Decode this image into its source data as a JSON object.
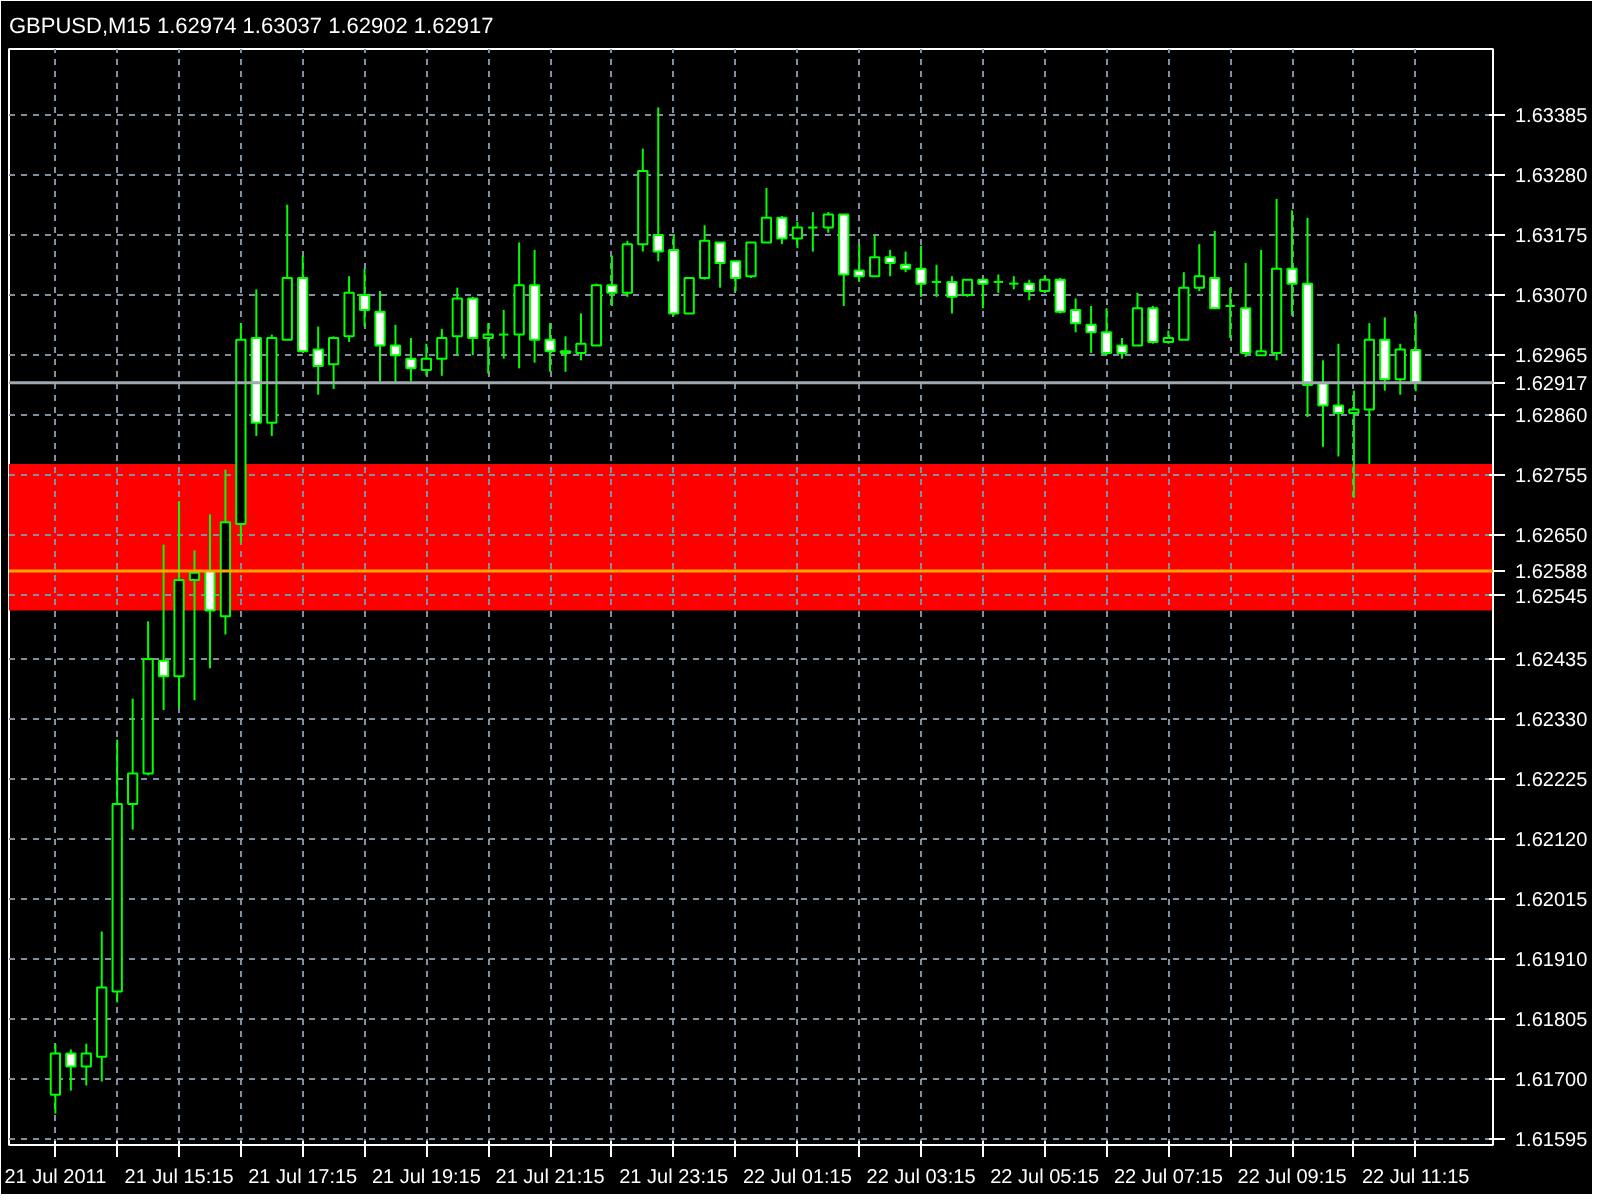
{
  "chart_data": {
    "type": "candlestick",
    "title": "GBPUSD,M15 1.62974 1.63037 1.62902 1.62917",
    "color": "#00ff00",
    "x": [
      "2011-07-21T13:15",
      "2011-07-21T13:30",
      "2011-07-21T13:45",
      "2011-07-21T14:00",
      "2011-07-21T14:15",
      "2011-07-21T14:30",
      "2011-07-21T14:45",
      "2011-07-21T15:00",
      "2011-07-21T15:15",
      "2011-07-21T15:30",
      "2011-07-21T15:45",
      "2011-07-21T16:00",
      "2011-07-21T16:15",
      "2011-07-21T16:30",
      "2011-07-21T16:45",
      "2011-07-21T17:00",
      "2011-07-21T17:15",
      "2011-07-21T17:30",
      "2011-07-21T17:45",
      "2011-07-21T18:00",
      "2011-07-21T18:15",
      "2011-07-21T18:30",
      "2011-07-21T18:45",
      "2011-07-21T19:00",
      "2011-07-21T19:15",
      "2011-07-21T19:30",
      "2011-07-21T19:45",
      "2011-07-21T20:00",
      "2011-07-21T20:15",
      "2011-07-21T20:30",
      "2011-07-21T20:45",
      "2011-07-21T21:00",
      "2011-07-21T21:15",
      "2011-07-21T21:30",
      "2011-07-21T21:45",
      "2011-07-21T22:00",
      "2011-07-21T22:15",
      "2011-07-21T22:30",
      "2011-07-21T22:45",
      "2011-07-21T23:00",
      "2011-07-21T23:15",
      "2011-07-21T23:30",
      "2011-07-21T23:45",
      "2011-07-22T00:00",
      "2011-07-22T00:15",
      "2011-07-22T00:30",
      "2011-07-22T00:45",
      "2011-07-22T01:00",
      "2011-07-22T01:15",
      "2011-07-22T01:30",
      "2011-07-22T01:45",
      "2011-07-22T02:00",
      "2011-07-22T02:15",
      "2011-07-22T02:30",
      "2011-07-22T02:45",
      "2011-07-22T03:00",
      "2011-07-22T03:15",
      "2011-07-22T03:30",
      "2011-07-22T03:45",
      "2011-07-22T04:00",
      "2011-07-22T04:15",
      "2011-07-22T04:30",
      "2011-07-22T04:45",
      "2011-07-22T05:00",
      "2011-07-22T05:15",
      "2011-07-22T05:30",
      "2011-07-22T05:45",
      "2011-07-22T06:00",
      "2011-07-22T06:15",
      "2011-07-22T06:30",
      "2011-07-22T06:45",
      "2011-07-22T07:00",
      "2011-07-22T07:15",
      "2011-07-22T07:30",
      "2011-07-22T07:45",
      "2011-07-22T08:00",
      "2011-07-22T08:15",
      "2011-07-22T08:30",
      "2011-07-22T08:45",
      "2011-07-22T09:00",
      "2011-07-22T09:15",
      "2011-07-22T09:30",
      "2011-07-22T09:45",
      "2011-07-22T10:00",
      "2011-07-22T10:15",
      "2011-07-22T10:30",
      "2011-07-22T10:45",
      "2011-07-22T11:00",
      "2011-07-22T11:15"
    ],
    "ohlc": [
      [
        1.61673,
        1.61762,
        1.6164,
        1.61745
      ],
      [
        1.61745,
        1.61752,
        1.6168,
        1.61722
      ],
      [
        1.61722,
        1.61762,
        1.61689,
        1.61745
      ],
      [
        1.61739,
        1.61958,
        1.61696,
        1.6186
      ],
      [
        1.61853,
        1.62293,
        1.61834,
        1.62181
      ],
      [
        1.62181,
        1.62365,
        1.62136,
        1.62234
      ],
      [
        1.62234,
        1.625,
        1.62231,
        1.62434
      ],
      [
        1.62431,
        1.62634,
        1.62345,
        1.62404
      ],
      [
        1.62404,
        1.6271,
        1.62349,
        1.62572
      ],
      [
        1.62572,
        1.62624,
        1.62362,
        1.62585
      ],
      [
        1.62588,
        1.62687,
        1.62418,
        1.62519
      ],
      [
        1.62509,
        1.62765,
        1.62477,
        1.62673
      ],
      [
        1.6267,
        1.63021,
        1.62637,
        1.62992
      ],
      [
        1.62995,
        1.6308,
        1.62824,
        1.62847
      ],
      [
        1.62847,
        1.63001,
        1.62824,
        1.62995
      ],
      [
        1.62992,
        1.63228,
        1.62992,
        1.631
      ],
      [
        1.631,
        1.63139,
        1.62972,
        1.62972
      ],
      [
        1.62975,
        1.63015,
        1.62896,
        1.62946
      ],
      [
        1.62949,
        1.62998,
        1.62906,
        1.62995
      ],
      [
        1.62998,
        1.63103,
        1.62988,
        1.63074
      ],
      [
        1.6307,
        1.63116,
        1.63015,
        1.63044
      ],
      [
        1.63041,
        1.63077,
        1.62919,
        1.62982
      ],
      [
        1.62982,
        1.63018,
        1.62916,
        1.62965
      ],
      [
        1.62959,
        1.62995,
        1.62919,
        1.62942
      ],
      [
        1.62939,
        1.62985,
        1.62929,
        1.62959
      ],
      [
        1.62959,
        1.63011,
        1.62929,
        1.62995
      ],
      [
        1.62998,
        1.63083,
        1.62965,
        1.63064
      ],
      [
        1.63064,
        1.63067,
        1.62965,
        1.62995
      ],
      [
        1.62995,
        1.63021,
        1.62933,
        1.63001
      ],
      [
        1.63001,
        1.63044,
        1.62959,
        1.63001
      ],
      [
        1.63001,
        1.63162,
        1.62942,
        1.63087
      ],
      [
        1.63087,
        1.63149,
        1.62952,
        1.62992
      ],
      [
        1.62992,
        1.63021,
        1.62936,
        1.62972
      ],
      [
        1.62969,
        1.62998,
        1.62936,
        1.62972
      ],
      [
        1.62969,
        1.63038,
        1.62956,
        1.62985
      ],
      [
        1.62982,
        1.6309,
        1.62982,
        1.63087
      ],
      [
        1.63087,
        1.63139,
        1.63051,
        1.63074
      ],
      [
        1.63074,
        1.63165,
        1.63067,
        1.63159
      ],
      [
        1.63159,
        1.63326,
        1.63146,
        1.63287
      ],
      [
        1.63175,
        1.63398,
        1.63129,
        1.63146
      ],
      [
        1.63149,
        1.63175,
        1.63034,
        1.63038
      ],
      [
        1.63038,
        1.631,
        1.63038,
        1.631
      ],
      [
        1.631,
        1.63192,
        1.63097,
        1.63165
      ],
      [
        1.63162,
        1.63162,
        1.63083,
        1.63126
      ],
      [
        1.63129,
        1.63129,
        1.63077,
        1.631
      ],
      [
        1.63103,
        1.63162,
        1.631,
        1.63162
      ],
      [
        1.63162,
        1.63257,
        1.63162,
        1.63205
      ],
      [
        1.63205,
        1.63208,
        1.63159,
        1.63169
      ],
      [
        1.63169,
        1.63198,
        1.63152,
        1.63188
      ],
      [
        1.63188,
        1.63215,
        1.63146,
        1.63188
      ],
      [
        1.63188,
        1.63215,
        1.63179,
        1.63211
      ],
      [
        1.63211,
        1.63211,
        1.63051,
        1.63106
      ],
      [
        1.63113,
        1.63159,
        1.63093,
        1.63103
      ],
      [
        1.63103,
        1.63175,
        1.63103,
        1.63136
      ],
      [
        1.63136,
        1.63149,
        1.63103,
        1.63126
      ],
      [
        1.63123,
        1.63146,
        1.6311,
        1.63116
      ],
      [
        1.63116,
        1.63156,
        1.63067,
        1.6309
      ],
      [
        1.63093,
        1.63123,
        1.63067,
        1.63093
      ],
      [
        1.63093,
        1.63103,
        1.63038,
        1.63067
      ],
      [
        1.6307,
        1.63097,
        1.63067,
        1.63097
      ],
      [
        1.63097,
        1.63097,
        1.63047,
        1.6309
      ],
      [
        1.63093,
        1.63106,
        1.63074,
        1.63093
      ],
      [
        1.6309,
        1.63103,
        1.6308,
        1.6309
      ],
      [
        1.6309,
        1.63097,
        1.63061,
        1.63077
      ],
      [
        1.63077,
        1.63103,
        1.63074,
        1.63097
      ],
      [
        1.63097,
        1.631,
        1.63038,
        1.63041
      ],
      [
        1.63044,
        1.63064,
        1.63005,
        1.63021
      ],
      [
        1.63018,
        1.63051,
        1.62969,
        1.63005
      ],
      [
        1.63005,
        1.63047,
        1.62965,
        1.62969
      ],
      [
        1.62982,
        1.62995,
        1.62959,
        1.62969
      ],
      [
        1.62982,
        1.63074,
        1.62982,
        1.63047
      ],
      [
        1.63047,
        1.63051,
        1.62985,
        1.62988
      ],
      [
        1.62988,
        1.63008,
        1.62985,
        1.62995
      ],
      [
        1.62992,
        1.6311,
        1.62992,
        1.63083
      ],
      [
        1.63083,
        1.63159,
        1.63077,
        1.63103
      ],
      [
        1.631,
        1.63182,
        1.63047,
        1.63047
      ],
      [
        1.63051,
        1.63083,
        1.62995,
        1.63051
      ],
      [
        1.63047,
        1.63126,
        1.62962,
        1.62969
      ],
      [
        1.62965,
        1.63149,
        1.62965,
        1.62972
      ],
      [
        1.62969,
        1.63238,
        1.62956,
        1.63116
      ],
      [
        1.63116,
        1.63218,
        1.63034,
        1.6309
      ],
      [
        1.6309,
        1.63205,
        1.62857,
        1.62913
      ],
      [
        1.62916,
        1.62956,
        1.62805,
        1.62877
      ],
      [
        1.62877,
        1.62985,
        1.62788,
        1.62864
      ],
      [
        1.62864,
        1.62903,
        1.62716,
        1.6287
      ],
      [
        1.6287,
        1.63021,
        1.62775,
        1.62992
      ],
      [
        1.62992,
        1.63031,
        1.62903,
        1.62923
      ],
      [
        1.62923,
        1.62985,
        1.62896,
        1.62975
      ],
      [
        1.62974,
        1.63037,
        1.62902,
        1.62917
      ]
    ],
    "xlim": [
      "2011-07-21T12:30",
      "2011-07-22T12:30"
    ],
    "xticks": [
      {
        "value": "2011-07-21T13:15",
        "label": "21 Jul 2011"
      },
      {
        "value": "2011-07-21T14:15",
        "label": null
      },
      {
        "value": "2011-07-21T15:15",
        "label": "21 Jul 15:15"
      },
      {
        "value": "2011-07-21T16:15",
        "label": null
      },
      {
        "value": "2011-07-21T17:15",
        "label": "21 Jul 17:15"
      },
      {
        "value": "2011-07-21T18:15",
        "label": null
      },
      {
        "value": "2011-07-21T19:15",
        "label": "21 Jul 19:15"
      },
      {
        "value": "2011-07-21T20:15",
        "label": null
      },
      {
        "value": "2011-07-21T21:15",
        "label": "21 Jul 21:15"
      },
      {
        "value": "2011-07-21T22:15",
        "label": null
      },
      {
        "value": "2011-07-21T23:15",
        "label": "21 Jul 23:15"
      },
      {
        "value": "2011-07-22T00:15",
        "label": null
      },
      {
        "value": "2011-07-22T01:15",
        "label": "22 Jul 01:15"
      },
      {
        "value": "2011-07-22T02:15",
        "label": null
      },
      {
        "value": "2011-07-22T03:15",
        "label": "22 Jul 03:15"
      },
      {
        "value": "2011-07-22T04:15",
        "label": null
      },
      {
        "value": "2011-07-22T05:15",
        "label": "22 Jul 05:15"
      },
      {
        "value": "2011-07-22T06:15",
        "label": null
      },
      {
        "value": "2011-07-22T07:15",
        "label": "22 Jul 07:15"
      },
      {
        "value": "2011-07-22T08:15",
        "label": null
      },
      {
        "value": "2011-07-22T09:15",
        "label": "22 Jul 09:15"
      },
      {
        "value": "2011-07-22T10:15",
        "label": null
      },
      {
        "value": "2011-07-22T11:15",
        "label": "22 Jul 11:15"
      }
    ],
    "ylim": [
      1.61585,
      1.635
    ],
    "yticks": [
      {
        "value": 1.63385,
        "label": "1.63385"
      },
      {
        "value": 1.6328,
        "label": "1.63280"
      },
      {
        "value": 1.63175,
        "label": "1.63175"
      },
      {
        "value": 1.6307,
        "label": "1.63070"
      },
      {
        "value": 1.62965,
        "label": "1.62965"
      },
      {
        "value": 1.6286,
        "label": "1.62860"
      },
      {
        "value": 1.62755,
        "label": "1.62755"
      },
      {
        "value": 1.6265,
        "label": "1.62650"
      },
      {
        "value": 1.62545,
        "label": "1.62545"
      },
      {
        "value": 1.62435,
        "label": "1.62435"
      },
      {
        "value": 1.6233,
        "label": "1.62330"
      },
      {
        "value": 1.62225,
        "label": "1.62225"
      },
      {
        "value": 1.6212,
        "label": "1.62120"
      },
      {
        "value": 1.62015,
        "label": "1.62015"
      },
      {
        "value": 1.6191,
        "label": "1.61910"
      },
      {
        "value": 1.61805,
        "label": "1.61805"
      },
      {
        "value": 1.617,
        "label": "1.61700"
      },
      {
        "value": 1.61595,
        "label": "1.61595"
      }
    ],
    "grid": true,
    "ref_lines": [
      {
        "axis": "y",
        "value": 1.62917,
        "label": "1.62917",
        "color": "#a0a8b0"
      },
      {
        "axis": "y",
        "value": 1.62588,
        "label": "1.62588",
        "color": "#ffa500"
      }
    ],
    "bands": [
      {
        "axis": "y",
        "from": 1.62519,
        "to": 1.62775,
        "color": "#ff0000"
      }
    ]
  }
}
